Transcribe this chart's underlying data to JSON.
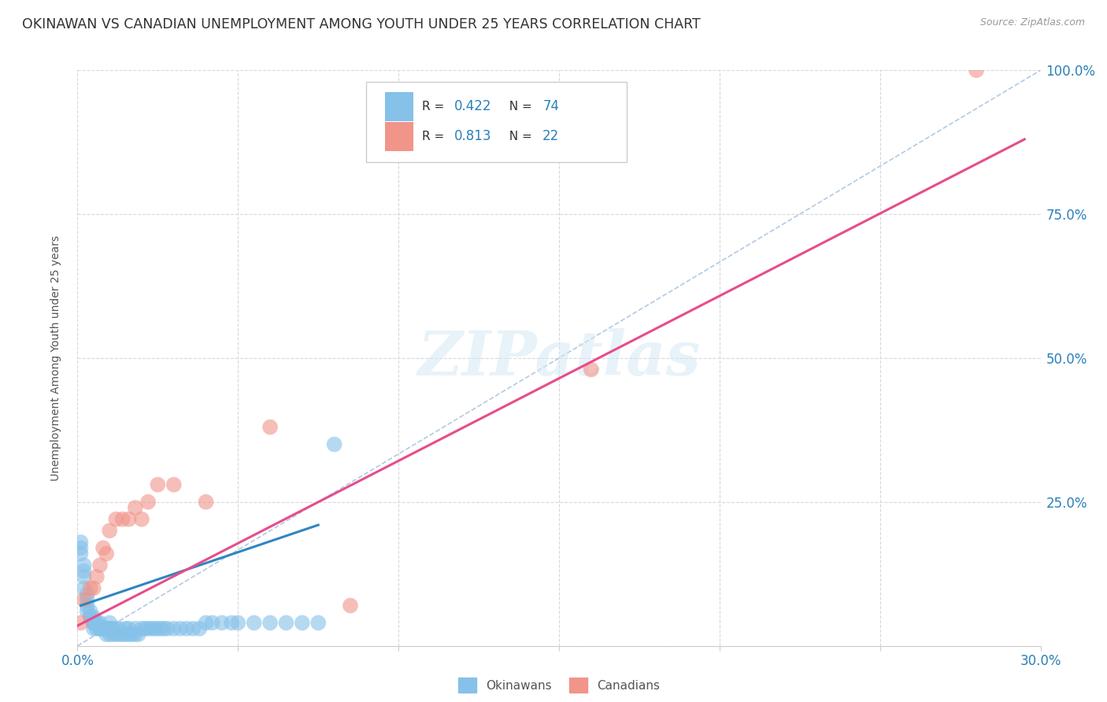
{
  "title": "OKINAWAN VS CANADIAN UNEMPLOYMENT AMONG YOUTH UNDER 25 YEARS CORRELATION CHART",
  "source": "Source: ZipAtlas.com",
  "ylabel": "Unemployment Among Youth under 25 years",
  "xlim": [
    0.0,
    0.3
  ],
  "ylim": [
    0.0,
    1.0
  ],
  "xticks": [
    0.0,
    0.05,
    0.1,
    0.15,
    0.2,
    0.25,
    0.3
  ],
  "yticks": [
    0.0,
    0.25,
    0.5,
    0.75,
    1.0
  ],
  "xticklabels_show": [
    "0.0%",
    "30.0%"
  ],
  "yticklabels_right": [
    "",
    "25.0%",
    "50.0%",
    "75.0%",
    "100.0%"
  ],
  "legend_label1": "Okinawans",
  "legend_label2": "Canadians",
  "watermark": "ZIPatlas",
  "blue_color": "#85c1e9",
  "blue_line_color": "#2e86c1",
  "pink_color": "#f1948a",
  "pink_line_color": "#e74c8b",
  "ref_line_color": "#aac4e0",
  "title_color": "#333333",
  "axis_label_color": "#555555",
  "tick_color": "#2980b9",
  "grid_color": "#d5d8dc",
  "legend_r1_val": "0.422",
  "legend_n1_val": "74",
  "legend_r2_val": "0.813",
  "legend_n2_val": "22",
  "okinawan_x": [
    0.001,
    0.001,
    0.001,
    0.002,
    0.002,
    0.002,
    0.002,
    0.003,
    0.003,
    0.003,
    0.003,
    0.004,
    0.004,
    0.004,
    0.005,
    0.005,
    0.005,
    0.005,
    0.005,
    0.006,
    0.006,
    0.006,
    0.007,
    0.007,
    0.007,
    0.008,
    0.008,
    0.008,
    0.009,
    0.009,
    0.01,
    0.01,
    0.01,
    0.01,
    0.011,
    0.011,
    0.012,
    0.012,
    0.013,
    0.013,
    0.014,
    0.015,
    0.015,
    0.016,
    0.016,
    0.017,
    0.018,
    0.018,
    0.019,
    0.02,
    0.021,
    0.022,
    0.023,
    0.024,
    0.025,
    0.026,
    0.027,
    0.028,
    0.03,
    0.032,
    0.034,
    0.036,
    0.038,
    0.04,
    0.042,
    0.045,
    0.048,
    0.05,
    0.055,
    0.06,
    0.065,
    0.07,
    0.075,
    0.08
  ],
  "okinawan_y": [
    0.18,
    0.17,
    0.16,
    0.14,
    0.13,
    0.12,
    0.1,
    0.09,
    0.08,
    0.07,
    0.06,
    0.06,
    0.05,
    0.05,
    0.05,
    0.04,
    0.04,
    0.04,
    0.03,
    0.04,
    0.04,
    0.03,
    0.04,
    0.03,
    0.03,
    0.03,
    0.03,
    0.03,
    0.03,
    0.02,
    0.04,
    0.03,
    0.03,
    0.02,
    0.03,
    0.02,
    0.03,
    0.02,
    0.03,
    0.02,
    0.02,
    0.03,
    0.02,
    0.03,
    0.02,
    0.02,
    0.03,
    0.02,
    0.02,
    0.03,
    0.03,
    0.03,
    0.03,
    0.03,
    0.03,
    0.03,
    0.03,
    0.03,
    0.03,
    0.03,
    0.03,
    0.03,
    0.03,
    0.04,
    0.04,
    0.04,
    0.04,
    0.04,
    0.04,
    0.04,
    0.04,
    0.04,
    0.04,
    0.35
  ],
  "canadian_x": [
    0.001,
    0.002,
    0.004,
    0.005,
    0.006,
    0.007,
    0.008,
    0.009,
    0.01,
    0.012,
    0.014,
    0.016,
    0.018,
    0.02,
    0.022,
    0.025,
    0.03,
    0.04,
    0.06,
    0.085,
    0.16,
    0.28
  ],
  "canadian_y": [
    0.04,
    0.08,
    0.1,
    0.1,
    0.12,
    0.14,
    0.17,
    0.16,
    0.2,
    0.22,
    0.22,
    0.22,
    0.24,
    0.22,
    0.25,
    0.28,
    0.28,
    0.25,
    0.38,
    0.07,
    0.48,
    1.0
  ],
  "blue_line_x": [
    0.001,
    0.075
  ],
  "blue_line_y": [
    0.07,
    0.21
  ],
  "pink_line_x": [
    0.0,
    0.295
  ],
  "pink_line_y": [
    0.035,
    0.88
  ]
}
